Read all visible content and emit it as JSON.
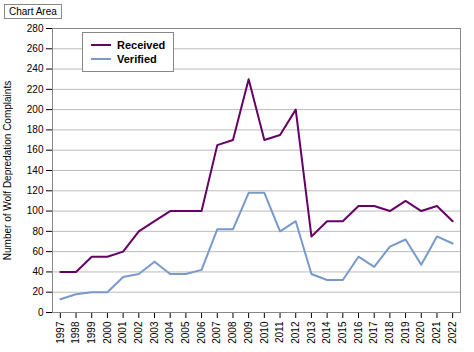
{
  "chart_data": {
    "type": "line",
    "ylabel": "Number of Wolf Depredation Complaints",
    "annotations": [
      "Chart Area"
    ],
    "x": [
      1997,
      1998,
      1999,
      2000,
      2001,
      2002,
      2003,
      2004,
      2005,
      2006,
      2007,
      2008,
      2009,
      2010,
      2011,
      2012,
      2013,
      2014,
      2015,
      2016,
      2017,
      2018,
      2019,
      2020,
      2021,
      2022
    ],
    "xlim": [
      1996.5,
      2022.5
    ],
    "xticks": [
      1997,
      1998,
      1999,
      2000,
      2001,
      2002,
      2003,
      2004,
      2005,
      2006,
      2007,
      2008,
      2009,
      2010,
      2011,
      2012,
      2013,
      2014,
      2015,
      2016,
      2017,
      2018,
      2019,
      2020,
      2021,
      2022
    ],
    "ylim": [
      0,
      280
    ],
    "yticks": [
      0,
      20,
      40,
      60,
      80,
      100,
      120,
      140,
      160,
      180,
      200,
      220,
      240,
      260,
      280
    ],
    "grid": true,
    "legend": "upper left",
    "series": [
      {
        "name": "Received",
        "color": "#660066",
        "values": [
          40,
          40,
          55,
          55,
          60,
          80,
          90,
          100,
          100,
          100,
          165,
          170,
          230,
          170,
          175,
          200,
          75,
          90,
          90,
          105,
          105,
          100,
          110,
          100,
          105,
          90
        ]
      },
      {
        "name": "Verified",
        "color": "#7799CC",
        "values": [
          13,
          18,
          20,
          20,
          35,
          38,
          50,
          38,
          38,
          42,
          82,
          82,
          118,
          118,
          80,
          90,
          38,
          32,
          32,
          55,
          45,
          65,
          72,
          47,
          75,
          68
        ]
      }
    ]
  }
}
